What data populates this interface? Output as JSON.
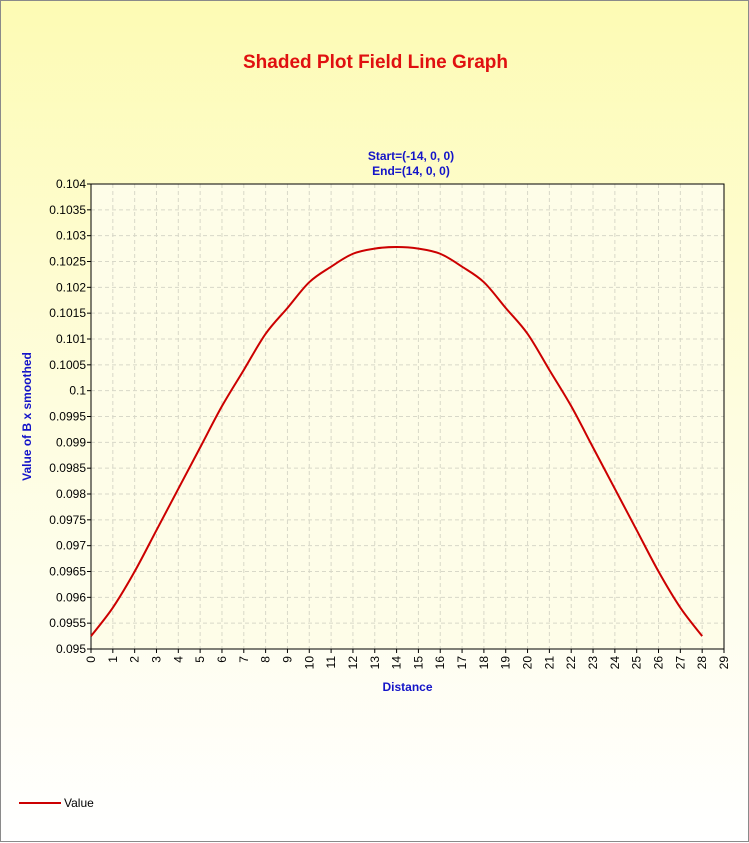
{
  "chart_data": {
    "type": "line",
    "title": "Shaded Plot Field Line Graph",
    "subtitle_lines": [
      "Start=(-14, 0, 0)",
      "End=(14, 0, 0)"
    ],
    "xlabel": "Distance",
    "ylabel": "Value of B x smoothed",
    "xlim": [
      0,
      29
    ],
    "ylim": [
      0.095,
      0.104
    ],
    "x_ticks": [
      "0",
      "1",
      "2",
      "3",
      "4",
      "5",
      "6",
      "7",
      "8",
      "9",
      "10",
      "11",
      "12",
      "13",
      "14",
      "15",
      "16",
      "17",
      "18",
      "19",
      "20",
      "21",
      "22",
      "23",
      "24",
      "25",
      "26",
      "27",
      "28",
      "29"
    ],
    "y_ticks": [
      "0.095",
      "0.0955",
      "0.096",
      "0.0965",
      "0.097",
      "0.0975",
      "0.098",
      "0.0985",
      "0.099",
      "0.0995",
      "0.1",
      "0.1005",
      "0.101",
      "0.1015",
      "0.102",
      "0.1025",
      "0.103",
      "0.1035",
      "0.104"
    ],
    "grid": true,
    "legend_position": "bottom-left",
    "series": [
      {
        "name": "Value",
        "color": "#cc0000",
        "x": [
          0,
          1,
          2,
          3,
          4,
          5,
          6,
          7,
          8,
          9,
          10,
          11,
          12,
          13,
          14,
          15,
          16,
          17,
          18,
          19,
          20,
          21,
          22,
          23,
          24,
          25,
          26,
          27,
          28
        ],
        "y": [
          0.09525,
          0.0958,
          0.0965,
          0.0973,
          0.0981,
          0.0989,
          0.0997,
          0.1004,
          0.1011,
          0.1016,
          0.1021,
          0.1024,
          0.10265,
          0.10275,
          0.10278,
          0.10275,
          0.10265,
          0.1024,
          0.1021,
          0.1016,
          0.1011,
          0.1004,
          0.0997,
          0.0989,
          0.0981,
          0.0973,
          0.0965,
          0.0958,
          0.09525
        ]
      }
    ]
  }
}
